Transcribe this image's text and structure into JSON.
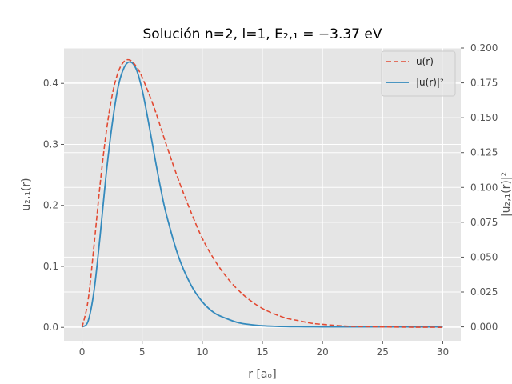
{
  "chart_data": {
    "type": "line",
    "title": "Solución n=2, l=1, E₂,₁ = −3.37 eV",
    "xlabel": "r [aₒ]",
    "ylabel_left": "u₂,₁(r)",
    "ylabel_right": "|u₂,₁(r)|²",
    "xlim": [
      -1.5,
      31.5
    ],
    "ylim_left": [
      -0.022,
      0.458
    ],
    "ylim_right": [
      -0.01,
      0.2
    ],
    "xticks": [
      0,
      5,
      10,
      15,
      20,
      25,
      30
    ],
    "yticks_left": [
      0.0,
      0.1,
      0.2,
      0.3,
      0.4
    ],
    "yticks_left_labels": [
      "0.0",
      "0.1",
      "0.2",
      "0.3",
      "0.4"
    ],
    "yticks_right": [
      0.0,
      0.025,
      0.05,
      0.075,
      0.1,
      0.125,
      0.15,
      0.175,
      0.2
    ],
    "yticks_right_labels": [
      "0.000",
      "0.025",
      "0.050",
      "0.075",
      "0.100",
      "0.125",
      "0.150",
      "0.175",
      "0.200"
    ],
    "grid": true,
    "legend_position": "top-right",
    "series": [
      {
        "name": "u(r)",
        "axis": "left",
        "style": "dashed",
        "color": "#E24A33",
        "x": [
          0,
          0.5,
          1,
          1.5,
          2,
          2.5,
          3,
          3.5,
          4,
          4.5,
          5,
          6,
          7,
          8,
          9,
          10,
          11,
          12,
          13,
          14,
          15,
          16,
          17,
          18,
          19,
          20,
          22,
          24,
          26,
          28,
          30
        ],
        "y": [
          0.0,
          0.044,
          0.135,
          0.234,
          0.318,
          0.38,
          0.418,
          0.436,
          0.438,
          0.428,
          0.41,
          0.36,
          0.3,
          0.243,
          0.192,
          0.146,
          0.111,
          0.083,
          0.061,
          0.044,
          0.031,
          0.022,
          0.015,
          0.011,
          0.007,
          0.005,
          0.002,
          0.001,
          0.0005,
          0.0002,
          0.0001
        ]
      },
      {
        "name": "|u(r)|²",
        "axis": "right",
        "style": "solid",
        "color": "#348ABD",
        "x": [
          0,
          0.5,
          1,
          1.5,
          2,
          2.5,
          3,
          3.5,
          4,
          4.5,
          5,
          5.5,
          6,
          6.5,
          7,
          8,
          9,
          10,
          11,
          12,
          13,
          14,
          15,
          16,
          17,
          18,
          20,
          22,
          25,
          30
        ],
        "y": [
          0.0,
          0.004,
          0.026,
          0.065,
          0.109,
          0.145,
          0.172,
          0.186,
          0.19,
          0.185,
          0.17,
          0.148,
          0.124,
          0.101,
          0.081,
          0.051,
          0.031,
          0.018,
          0.01,
          0.006,
          0.003,
          0.0016,
          0.0008,
          0.0004,
          0.0002,
          0.0001,
          0.0,
          0.0,
          0.0,
          0.0
        ]
      }
    ]
  },
  "colors": {
    "plot_background": "#E5E5E5",
    "grid": "#FFFFFF",
    "u_line": "#E24A33",
    "u2_line": "#348ABD"
  }
}
